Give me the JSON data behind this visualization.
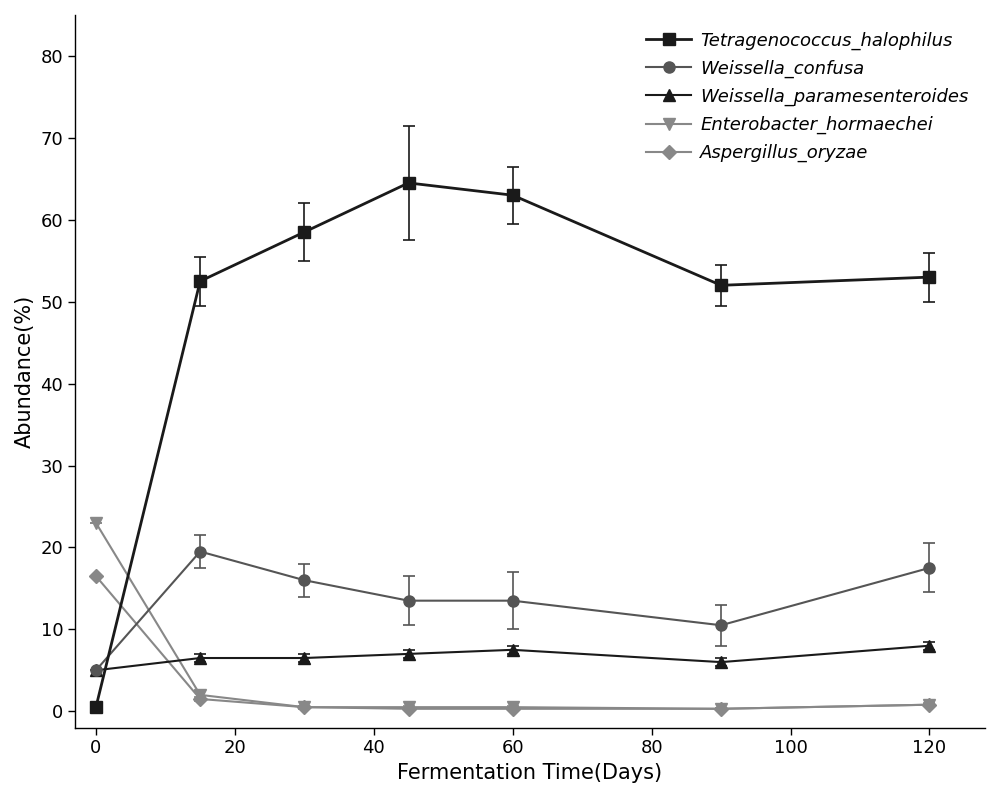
{
  "x": [
    0,
    15,
    30,
    45,
    60,
    90,
    120
  ],
  "series": [
    {
      "label": "Tetragenococcus_halophilus",
      "y": [
        0.5,
        52.5,
        58.5,
        64.5,
        63.0,
        52.0,
        53.0
      ],
      "yerr": [
        0.0,
        3.0,
        3.5,
        7.0,
        3.5,
        2.5,
        3.0
      ],
      "color": "#1a1a1a",
      "marker": "s",
      "markersize": 8,
      "linewidth": 2.0,
      "linestyle": "-",
      "zorder": 5
    },
    {
      "label": "Weissella_confusa",
      "y": [
        5.0,
        19.5,
        16.0,
        13.5,
        13.5,
        10.5,
        17.5
      ],
      "yerr": [
        0.0,
        2.0,
        2.0,
        3.0,
        3.5,
        2.5,
        3.0
      ],
      "color": "#555555",
      "marker": "o",
      "markersize": 8,
      "linewidth": 1.5,
      "linestyle": "-",
      "zorder": 4
    },
    {
      "label": "Weissella_paramesenteroides",
      "y": [
        5.0,
        6.5,
        6.5,
        7.0,
        7.5,
        6.0,
        8.0
      ],
      "yerr": [
        0.0,
        0.5,
        0.5,
        0.5,
        0.5,
        0.5,
        0.5
      ],
      "color": "#1a1a1a",
      "marker": "^",
      "markersize": 8,
      "linewidth": 1.5,
      "linestyle": "-",
      "zorder": 3
    },
    {
      "label": "Enterobacter_hormaechei",
      "y": [
        23.0,
        2.0,
        0.5,
        0.5,
        0.5,
        0.3,
        0.8
      ],
      "yerr": [
        0.0,
        0.5,
        0.2,
        0.1,
        0.1,
        0.1,
        0.2
      ],
      "color": "#888888",
      "marker": "v",
      "markersize": 8,
      "linewidth": 1.5,
      "linestyle": "-",
      "zorder": 2
    },
    {
      "label": "Aspergillus_oryzae",
      "y": [
        16.5,
        1.5,
        0.5,
        0.3,
        0.3,
        0.3,
        0.8
      ],
      "yerr": [
        0.0,
        0.3,
        0.1,
        0.1,
        0.1,
        0.1,
        0.1
      ],
      "color": "#888888",
      "marker": "D",
      "markersize": 7,
      "linewidth": 1.5,
      "linestyle": "-",
      "zorder": 1
    }
  ],
  "xlabel": "Fermentation Time(Days)",
  "ylabel": "Abundance(%)",
  "xlim": [
    -3,
    128
  ],
  "ylim": [
    -2,
    85
  ],
  "xticks": [
    0,
    20,
    40,
    60,
    80,
    100,
    120
  ],
  "yticks": [
    0,
    10,
    20,
    30,
    40,
    50,
    60,
    70,
    80
  ],
  "legend_loc": "upper right",
  "legend_fontsize": 13,
  "axis_fontsize": 15,
  "tick_fontsize": 13,
  "figsize": [
    10.0,
    7.98
  ],
  "dpi": 100,
  "bg_color": "#ffffff"
}
